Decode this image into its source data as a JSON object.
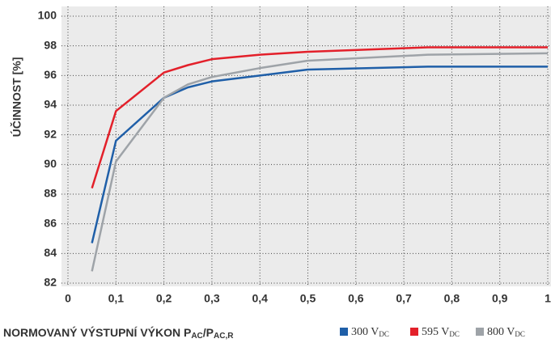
{
  "chart_data": {
    "type": "line",
    "ylabel": "ÚČINNOST [%]",
    "xlabel_parts": [
      "NORMOVANÝ VÝSTUPNÍ VÝKON P",
      "AC",
      "/P",
      "AC,R"
    ],
    "x": [
      0.05,
      0.1,
      0.2,
      0.25,
      0.3,
      0.4,
      0.5,
      0.75,
      1
    ],
    "series": [
      {
        "name": "300 V",
        "name_sub": "DC",
        "color": "#1f5fa8",
        "values": [
          84.7,
          91.6,
          94.5,
          95.2,
          95.6,
          96.0,
          96.4,
          96.6,
          96.6
        ]
      },
      {
        "name": "595 V",
        "name_sub": "DC",
        "color": "#e3202a",
        "values": [
          88.4,
          93.6,
          96.2,
          96.7,
          97.1,
          97.4,
          97.6,
          97.9,
          97.9
        ]
      },
      {
        "name": "800 V",
        "name_sub": "DC",
        "color": "#9ea3a8",
        "values": [
          82.8,
          90.2,
          94.5,
          95.4,
          95.9,
          96.5,
          97.0,
          97.4,
          97.5
        ]
      }
    ],
    "xlim": [
      0,
      1
    ],
    "xticks": [
      0,
      {
        "value": 0.1,
        "label": "0,1"
      },
      {
        "value": 0.2,
        "label": "0,2"
      },
      {
        "value": 0.3,
        "label": "0,3"
      },
      {
        "value": 0.4,
        "label": "0,4"
      },
      {
        "value": 0.5,
        "label": "0,5"
      },
      {
        "value": 0.6,
        "label": "0,6"
      },
      {
        "value": 0.7,
        "label": "0,7"
      },
      {
        "value": 0.8,
        "label": "0,8"
      },
      {
        "value": 0.9,
        "label": "0,9"
      },
      1
    ],
    "ylim": [
      82,
      100
    ],
    "yticks": [
      82,
      84,
      86,
      88,
      90,
      92,
      94,
      96,
      98,
      100
    ],
    "grid": true
  }
}
